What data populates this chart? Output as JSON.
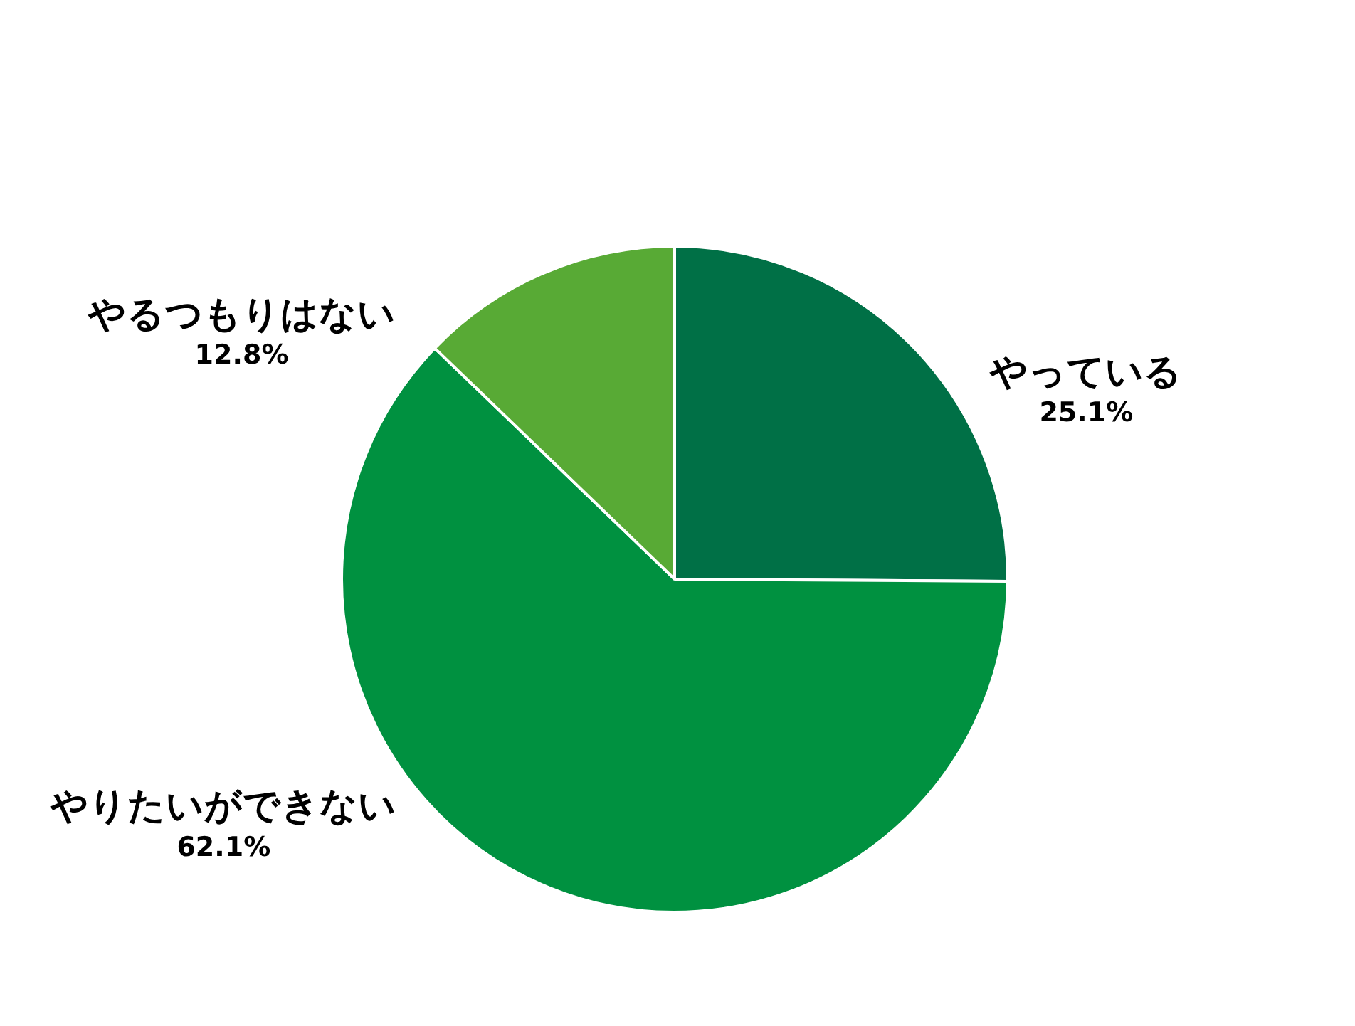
{
  "chart_data": {
    "type": "pie",
    "categories": [
      "やっている",
      "やりたいができない",
      "やるつもりはない"
    ],
    "values": [
      25.1,
      62.1,
      12.8
    ],
    "colors": [
      "#007046",
      "#009140",
      "#58aa35"
    ],
    "value_labels": [
      "25.1%",
      "62.1%",
      "12.8%"
    ]
  }
}
